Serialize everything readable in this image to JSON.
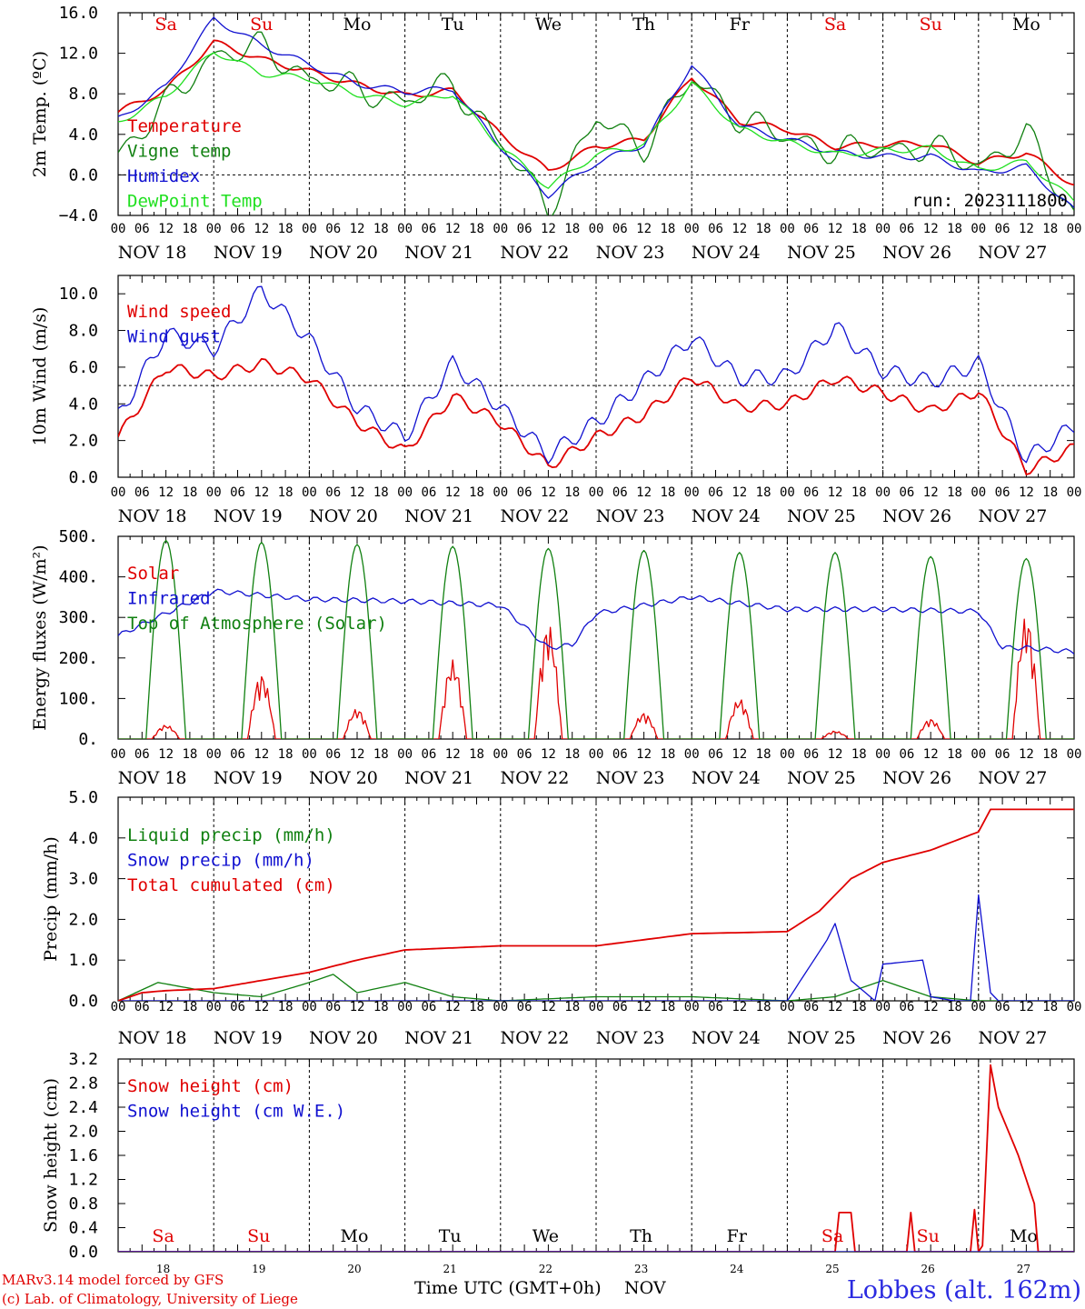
{
  "days": [
    "Sa",
    "Su",
    "Mo",
    "Tu",
    "We",
    "Th",
    "Fr",
    "Sa",
    "Su",
    "Mo"
  ],
  "day_colors": [
    "#e00000",
    "#e00000",
    "#000000",
    "#000000",
    "#000000",
    "#000000",
    "#000000",
    "#e00000",
    "#e00000",
    "#000000"
  ],
  "dates": [
    "NOV 18",
    "NOV 19",
    "NOV 20",
    "NOV 21",
    "NOV 22",
    "NOV 23",
    "NOV 24",
    "NOV 25",
    "NOV 26",
    "NOV 27"
  ],
  "day_numbers": [
    "18",
    "19",
    "20",
    "21",
    "22",
    "23",
    "24",
    "25",
    "26",
    "27"
  ],
  "hour_ticks": [
    "00",
    "06",
    "12",
    "18"
  ],
  "colors": {
    "red": "#e00000",
    "green": "#108010",
    "blue": "#1010d0",
    "lightgreen": "#20e020"
  },
  "run_label": "run: 2023111800",
  "footer": {
    "credit1": "MARv3.14 model forced by GFS",
    "credit2": "(c) Lab. of Climatology, University of Liege",
    "xlabel": "Time UTC (GMT+0h)",
    "month": "NOV",
    "station": "Lobbes (alt. 162m)"
  },
  "chart_data": [
    {
      "type": "line",
      "ylabel": "2m Temp. (ºC)",
      "ylim": [
        -4,
        16
      ],
      "yticks": [
        "16.0",
        "12.0",
        "8.0",
        "4.0",
        "0.0",
        "−4.0"
      ],
      "ytick_values": [
        16,
        12,
        8,
        4,
        0,
        -4
      ],
      "refline": 0,
      "x": [
        0,
        12,
        24,
        36,
        48,
        60,
        72,
        84,
        96,
        108,
        120,
        132,
        144,
        156,
        168,
        180,
        192,
        204,
        216,
        228,
        240
      ],
      "series": [
        {
          "name": "Temperature",
          "color": "red",
          "values": [
            6.2,
            8.4,
            13.1,
            11.4,
            10.2,
            8.9,
            7.8,
            8.3,
            4.0,
            0.4,
            2.8,
            3.5,
            9.7,
            5.3,
            4.5,
            2.8,
            3.0,
            3.1,
            1.2,
            2.2,
            -1.0
          ]
        },
        {
          "name": "Vigne temp",
          "color": "green",
          "values": [
            2.2,
            7.0,
            12.0,
            12.6,
            9.6,
            8.5,
            7.2,
            9.0,
            3.0,
            -3.2,
            5.4,
            2.8,
            9.4,
            5.6,
            3.6,
            2.4,
            2.6,
            2.7,
            1.0,
            4.0,
            -3.8
          ]
        },
        {
          "name": "Humidex",
          "color": "blue",
          "values": [
            5.5,
            8.7,
            15.4,
            12.8,
            10.9,
            9.0,
            8.2,
            8.5,
            2.8,
            -2.0,
            1.2,
            3.0,
            10.9,
            4.8,
            3.5,
            2.2,
            1.8,
            1.8,
            0.2,
            0.8,
            -3.5
          ]
        },
        {
          "name": "DewPoint Temp",
          "color": "lightgreen",
          "values": [
            5.2,
            7.8,
            12.2,
            10.0,
            9.5,
            8.0,
            7.0,
            8.0,
            2.8,
            -1.2,
            2.0,
            3.0,
            9.0,
            4.5,
            3.2,
            2.0,
            2.4,
            2.6,
            0.5,
            1.3,
            -2.6
          ]
        }
      ]
    },
    {
      "type": "line",
      "ylabel": "10m Wind (m/s)",
      "ylim": [
        0,
        11
      ],
      "yticks": [
        "10.0",
        "8.0",
        "6.0",
        "4.0",
        "2.0",
        "0.0"
      ],
      "ytick_values": [
        10,
        8,
        6,
        4,
        2,
        0
      ],
      "refline": 5,
      "x": [
        0,
        12,
        24,
        36,
        48,
        60,
        72,
        84,
        96,
        108,
        120,
        132,
        144,
        156,
        168,
        180,
        192,
        204,
        216,
        228,
        240
      ],
      "series": [
        {
          "name": "Wind speed",
          "color": "red",
          "values": [
            2.2,
            6.0,
            5.5,
            6.2,
            5.4,
            3.0,
            1.4,
            4.4,
            3.0,
            0.6,
            2.2,
            3.4,
            5.5,
            3.8,
            4.0,
            5.4,
            4.6,
            3.6,
            4.7,
            0.4,
            1.6
          ]
        },
        {
          "name": "Wind gust",
          "color": "blue",
          "values": [
            3.3,
            7.8,
            7.0,
            10.2,
            7.5,
            3.8,
            2.2,
            6.2,
            3.8,
            1.2,
            3.0,
            5.2,
            7.6,
            5.4,
            5.5,
            8.2,
            5.8,
            5.2,
            6.2,
            1.0,
            2.8
          ]
        }
      ]
    },
    {
      "type": "line",
      "ylabel": "Energy fluxes (W/m²)",
      "ylim": [
        0,
        500
      ],
      "yticks": [
        "500.",
        "400.",
        "300.",
        "200.",
        "100.",
        "0."
      ],
      "ytick_values": [
        500,
        400,
        300,
        200,
        100,
        0
      ],
      "x_peaks": [
        12,
        36,
        60,
        84,
        108,
        132,
        156,
        180,
        204,
        228
      ],
      "series": [
        {
          "name": "Solar",
          "color": "red",
          "peaks": [
            35,
            160,
            75,
            195,
            285,
            65,
            100,
            20,
            50,
            305
          ]
        },
        {
          "name": "Infrared",
          "color": "blue",
          "x": [
            0,
            24,
            48,
            72,
            96,
            108,
            114,
            120,
            144,
            168,
            192,
            216,
            222,
            228,
            240
          ],
          "values": [
            255,
            365,
            345,
            340,
            330,
            225,
            232,
            310,
            350,
            320,
            320,
            315,
            225,
            225,
            215
          ]
        },
        {
          "name": "Top of Atmosphere (Solar)",
          "color": "green",
          "peaks": [
            490,
            485,
            480,
            475,
            470,
            465,
            460,
            460,
            450,
            445
          ]
        }
      ]
    },
    {
      "type": "line",
      "ylabel": "Precip (mm/h)",
      "ylim": [
        0,
        5
      ],
      "yticks": [
        "5.0",
        "4.0",
        "3.0",
        "2.0",
        "1.0",
        "0.0"
      ],
      "ytick_values": [
        5,
        4,
        3,
        2,
        1,
        0
      ],
      "series": [
        {
          "name": "Liquid precip (mm/h)",
          "color": "green",
          "x": [
            0,
            10,
            24,
            36,
            48,
            54,
            60,
            72,
            84,
            96,
            120,
            144,
            168,
            180,
            192,
            204,
            216,
            240
          ],
          "values": [
            0,
            0.45,
            0.2,
            0.1,
            0.45,
            0.65,
            0.2,
            0.45,
            0.1,
            0,
            0.1,
            0.1,
            0,
            0.1,
            0.5,
            0.1,
            0,
            0
          ]
        },
        {
          "name": "Snow precip (mm/h)",
          "color": "blue",
          "x": [
            0,
            168,
            178,
            180,
            184,
            190,
            192,
            202,
            204,
            210,
            214,
            216,
            219,
            221,
            240
          ],
          "values": [
            0,
            0,
            1.5,
            1.9,
            0.5,
            0,
            0.9,
            1.0,
            0.1,
            0,
            0,
            2.6,
            0.2,
            0,
            0
          ]
        },
        {
          "name": "Total cumulated (cm)",
          "color": "red",
          "x": [
            0,
            6,
            12,
            24,
            36,
            48,
            60,
            72,
            96,
            120,
            144,
            168,
            176,
            184,
            192,
            204,
            216,
            219,
            240
          ],
          "values": [
            0,
            0.2,
            0.25,
            0.3,
            0.5,
            0.7,
            1.0,
            1.25,
            1.35,
            1.35,
            1.65,
            1.7,
            2.2,
            3.0,
            3.4,
            3.7,
            4.15,
            4.7,
            4.7
          ]
        }
      ]
    },
    {
      "type": "line",
      "ylabel": "Snow height (cm)",
      "ylim": [
        0,
        3.2
      ],
      "yticks": [
        "3.2",
        "2.8",
        "2.4",
        "2.0",
        "1.6",
        "1.2",
        "0.8",
        "0.4",
        "0.0"
      ],
      "ytick_values": [
        3.2,
        2.8,
        2.4,
        2.0,
        1.6,
        1.2,
        0.8,
        0.4,
        0.0
      ],
      "series": [
        {
          "name": "Snow height (cm)",
          "color": "red",
          "x": [
            0,
            180,
            181,
            184,
            185,
            198,
            199,
            200,
            214,
            215,
            216,
            217,
            219,
            221,
            226,
            230,
            231,
            240
          ],
          "values": [
            0,
            0,
            0.65,
            0.65,
            0,
            0,
            0.65,
            0,
            0,
            0.7,
            0,
            0.1,
            3.1,
            2.4,
            1.6,
            0.8,
            0,
            0
          ]
        },
        {
          "name": "Snow height (cm W.E.)",
          "color": "blue",
          "x": [
            0,
            240
          ],
          "values": [
            0,
            0
          ]
        }
      ]
    }
  ]
}
